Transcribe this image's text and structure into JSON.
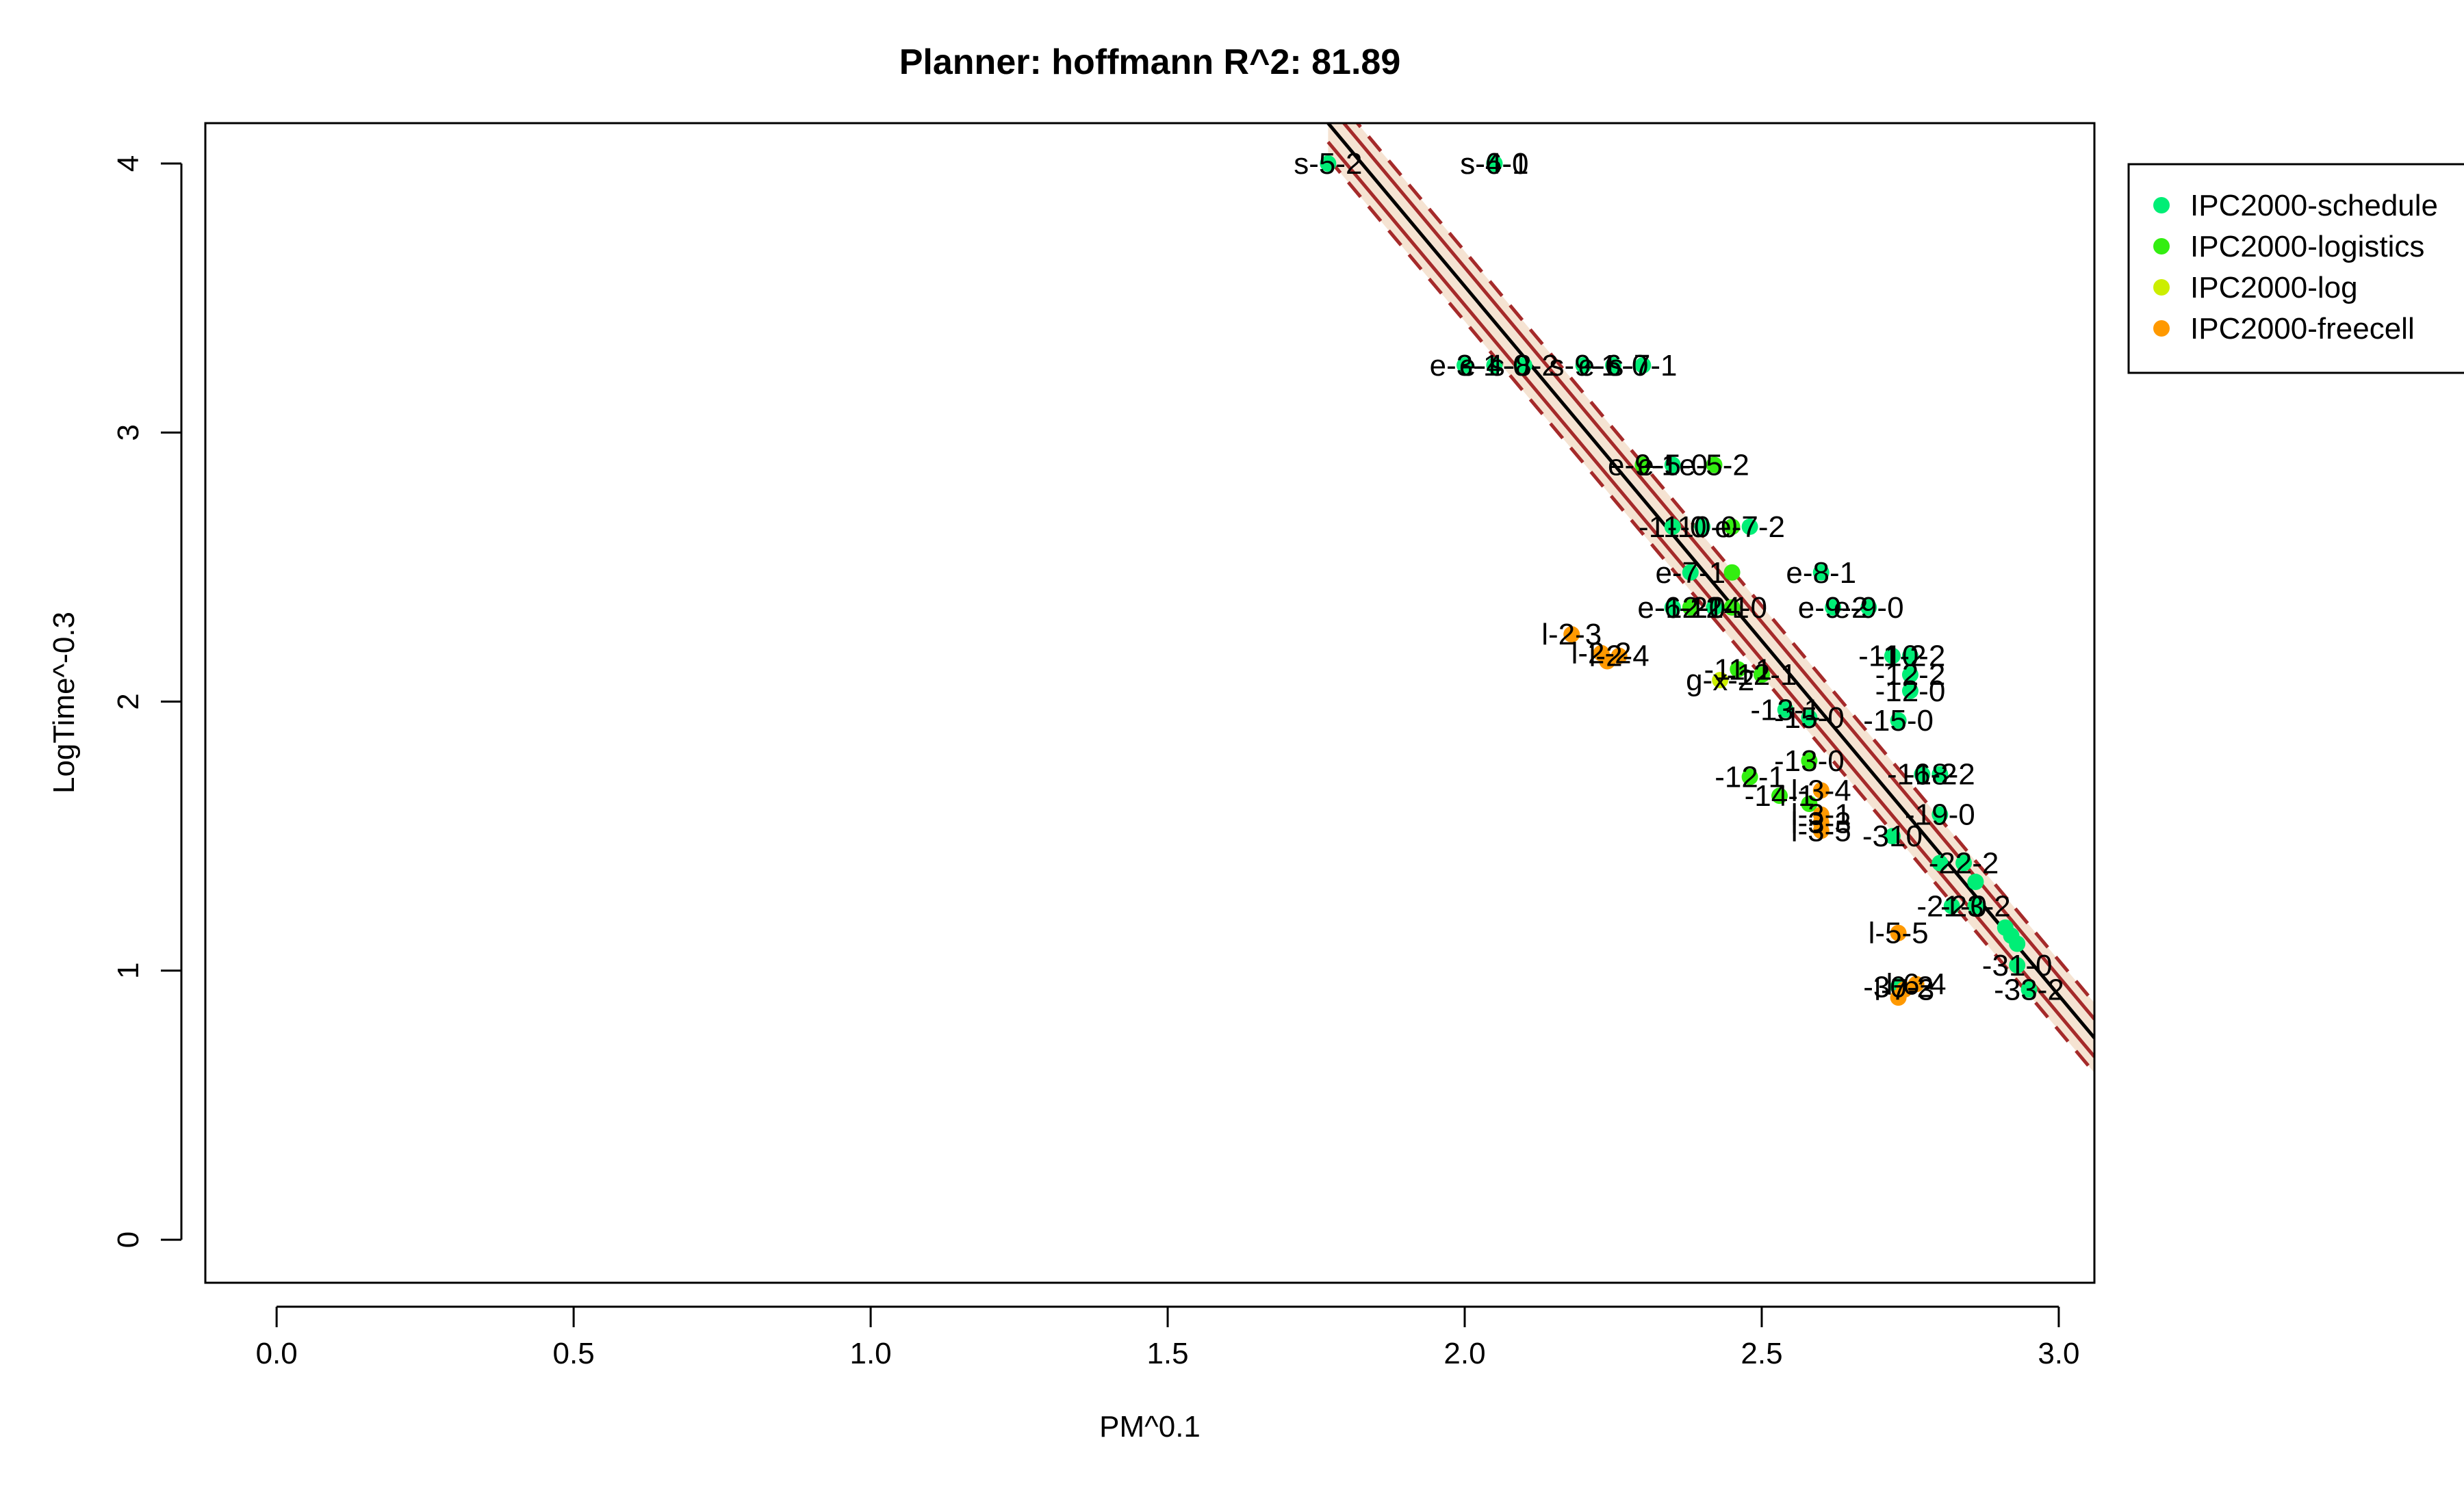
{
  "chart_data": {
    "type": "scatter",
    "title": "Planner: hoffmann R^2: 81.89",
    "xlabel": "PM^0.1",
    "ylabel": "LogTime^-0.3",
    "xlim": [
      -0.12,
      3.06
    ],
    "ylim": [
      -0.16,
      4.15
    ],
    "x_ticks": [
      0.0,
      0.5,
      1.0,
      1.5,
      2.0,
      2.5,
      3.0
    ],
    "x_tick_labels": [
      "0.0",
      "0.5",
      "1.0",
      "1.5",
      "2.0",
      "2.5",
      "3.0"
    ],
    "y_ticks": [
      0,
      1,
      2,
      3,
      4
    ],
    "y_tick_labels": [
      "0",
      "1",
      "2",
      "3",
      "4"
    ],
    "grid": false,
    "legend": {
      "position": "top-right"
    },
    "fit": {
      "line_points": [
        [
          1.77,
          4.15
        ],
        [
          3.06,
          0.75
        ]
      ],
      "confidence_halfwidth": 0.07,
      "prediction_halfwidth": 0.13,
      "fill_color": "#f5e3d2",
      "band_color": "#a52a2a",
      "line_color": "#000000"
    },
    "series": [
      {
        "name": "IPC2000-schedule",
        "color": "#00ee76",
        "points": [
          {
            "x": 1.77,
            "y": 4.0,
            "label": "s-5-2"
          },
          {
            "x": 2.05,
            "y": 4.0,
            "label": "s-4-0"
          },
          {
            "x": 2.05,
            "y": 4.0,
            "label": "s-6-1"
          },
          {
            "x": 2.0,
            "y": 3.25,
            "label": "e-3-1"
          },
          {
            "x": 2.05,
            "y": 3.25,
            "label": "e-4-0"
          },
          {
            "x": 2.1,
            "y": 3.25,
            "label": "s-8-2"
          },
          {
            "x": 2.2,
            "y": 3.25,
            "label": "s-9-1"
          },
          {
            "x": 2.25,
            "y": 3.25,
            "label": "e-6-0"
          },
          {
            "x": 2.3,
            "y": 3.25,
            "label": "s-7-1"
          },
          {
            "x": 2.35,
            "y": 2.88,
            "label": "e-5-0"
          },
          {
            "x": 2.35,
            "y": 2.65,
            "label": "-11-0"
          },
          {
            "x": 2.4,
            "y": 2.65,
            "label": "-10-0"
          },
          {
            "x": 2.48,
            "y": 2.65,
            "label": "e-7-2"
          },
          {
            "x": 2.38,
            "y": 2.48,
            "label": "e-7-1"
          },
          {
            "x": 2.6,
            "y": 2.48,
            "label": "e-8-1"
          },
          {
            "x": 2.35,
            "y": 2.35,
            "label": "e-6-2"
          },
          {
            "x": 2.42,
            "y": 2.35,
            "label": "-12-1"
          },
          {
            "x": 2.62,
            "y": 2.35,
            "label": "e-9-2"
          },
          {
            "x": 2.68,
            "y": 2.35,
            "label": "e-9-0"
          },
          {
            "x": 2.75,
            "y": 2.17,
            "label": "-10-2"
          },
          {
            "x": 2.72,
            "y": 2.17,
            "label": "-11-2"
          },
          {
            "x": 2.75,
            "y": 2.1,
            "label": "-12-2"
          },
          {
            "x": 2.75,
            "y": 2.04,
            "label": "-12-0"
          },
          {
            "x": 2.54,
            "y": 1.97,
            "label": "-13-1"
          },
          {
            "x": 2.58,
            "y": 1.94,
            "label": "-15-0"
          },
          {
            "x": 2.73,
            "y": 1.93,
            "label": "-15-0"
          },
          {
            "x": 2.77,
            "y": 1.73,
            "label": "-16-2"
          },
          {
            "x": 2.8,
            "y": 1.73,
            "label": "-18-2"
          },
          {
            "x": 2.8,
            "y": 1.58,
            "label": "-19-0"
          },
          {
            "x": 2.72,
            "y": 1.5,
            "label": "-310"
          },
          {
            "x": 2.84,
            "y": 1.4,
            "label": "-22-2"
          },
          {
            "x": 2.8,
            "y": 1.4,
            "label": ""
          },
          {
            "x": 2.86,
            "y": 1.33,
            "label": ""
          },
          {
            "x": 2.82,
            "y": 1.24,
            "label": "-21-0"
          },
          {
            "x": 2.86,
            "y": 1.24,
            "label": "-23-2"
          },
          {
            "x": 2.91,
            "y": 1.16,
            "label": ""
          },
          {
            "x": 2.92,
            "y": 1.13,
            "label": ""
          },
          {
            "x": 2.93,
            "y": 1.1,
            "label": ""
          },
          {
            "x": 2.93,
            "y": 1.02,
            "label": "-31-0"
          },
          {
            "x": 2.95,
            "y": 0.93,
            "label": "-33-2"
          },
          {
            "x": 2.73,
            "y": 0.94,
            "label": "-30-2"
          }
        ]
      },
      {
        "name": "IPC2000-logistics",
        "color": "#33ee11",
        "points": [
          {
            "x": 2.3,
            "y": 2.88,
            "label": "e-9-1"
          },
          {
            "x": 2.42,
            "y": 2.88,
            "label": "e-5-2"
          },
          {
            "x": 2.45,
            "y": 2.65,
            "label": ""
          },
          {
            "x": 2.45,
            "y": 2.48,
            "label": ""
          },
          {
            "x": 2.38,
            "y": 2.35,
            "label": "-12-0"
          },
          {
            "x": 2.45,
            "y": 2.35,
            "label": "-14-0"
          },
          {
            "x": 2.46,
            "y": 2.12,
            "label": "-11-1"
          },
          {
            "x": 2.5,
            "y": 2.1,
            "label": "-12-1"
          },
          {
            "x": 2.48,
            "y": 1.72,
            "label": "-12-1"
          },
          {
            "x": 2.58,
            "y": 1.78,
            "label": "-13-0"
          },
          {
            "x": 2.53,
            "y": 1.65,
            "label": "-14-1"
          },
          {
            "x": 2.58,
            "y": 1.62,
            "label": ""
          }
        ]
      },
      {
        "name": "IPC2000-log",
        "color": "#ccee00",
        "points": [
          {
            "x": 2.43,
            "y": 2.08,
            "label": "g-x-2"
          }
        ]
      },
      {
        "name": "IPC2000-freecell",
        "color": "#ff9900",
        "points": [
          {
            "x": 2.18,
            "y": 2.25,
            "label": "l-2-3"
          },
          {
            "x": 2.23,
            "y": 2.18,
            "label": "l-2-2"
          },
          {
            "x": 2.26,
            "y": 2.17,
            "label": "l-2-4"
          },
          {
            "x": 2.24,
            "y": 2.15,
            "label": ""
          },
          {
            "x": 2.6,
            "y": 1.67,
            "label": "l-3-4"
          },
          {
            "x": 2.6,
            "y": 1.58,
            "label": "l-3-1"
          },
          {
            "x": 2.6,
            "y": 1.55,
            "label": "l-3-3"
          },
          {
            "x": 2.6,
            "y": 1.52,
            "label": "l-3-5"
          },
          {
            "x": 2.73,
            "y": 1.14,
            "label": "l-5-5"
          },
          {
            "x": 2.74,
            "y": 0.93,
            "label": "l-7-3"
          },
          {
            "x": 2.76,
            "y": 0.95,
            "label": "l-6-4"
          },
          {
            "x": 2.73,
            "y": 0.9,
            "label": ""
          }
        ]
      }
    ]
  }
}
